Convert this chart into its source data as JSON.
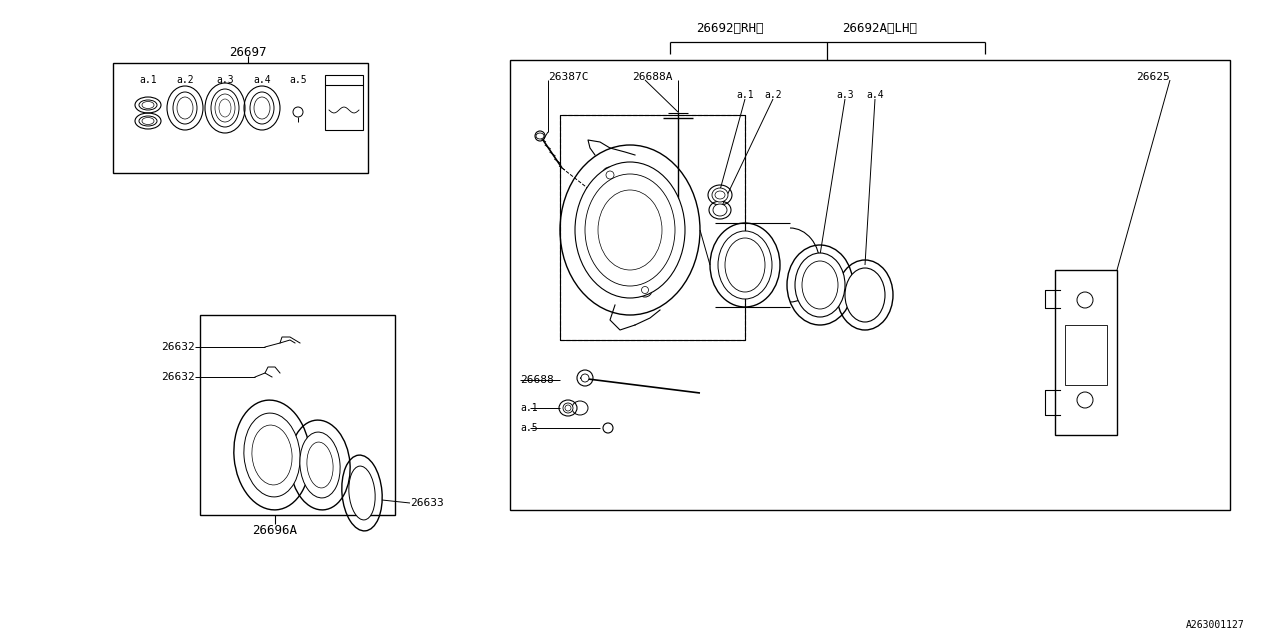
{
  "bg_color": "#ffffff",
  "line_color": "#000000",
  "font_size": 8,
  "fig_width": 12.8,
  "fig_height": 6.4,
  "watermark": "A263001127",
  "labels": {
    "part_26697": "26697",
    "part_26692RH": "26692〈RH〉",
    "part_26692ALH": "26692A〈LH〉",
    "part_26387C": "26387C",
    "part_26688A": "26688A",
    "part_26688": "26688",
    "part_26625": "26625",
    "part_26632": "26632",
    "part_26633": "26633",
    "part_26696A": "26696A",
    "a1": "a.1",
    "a2": "a.2",
    "a3": "a.3",
    "a4": "a.4",
    "a5": "a.5"
  }
}
